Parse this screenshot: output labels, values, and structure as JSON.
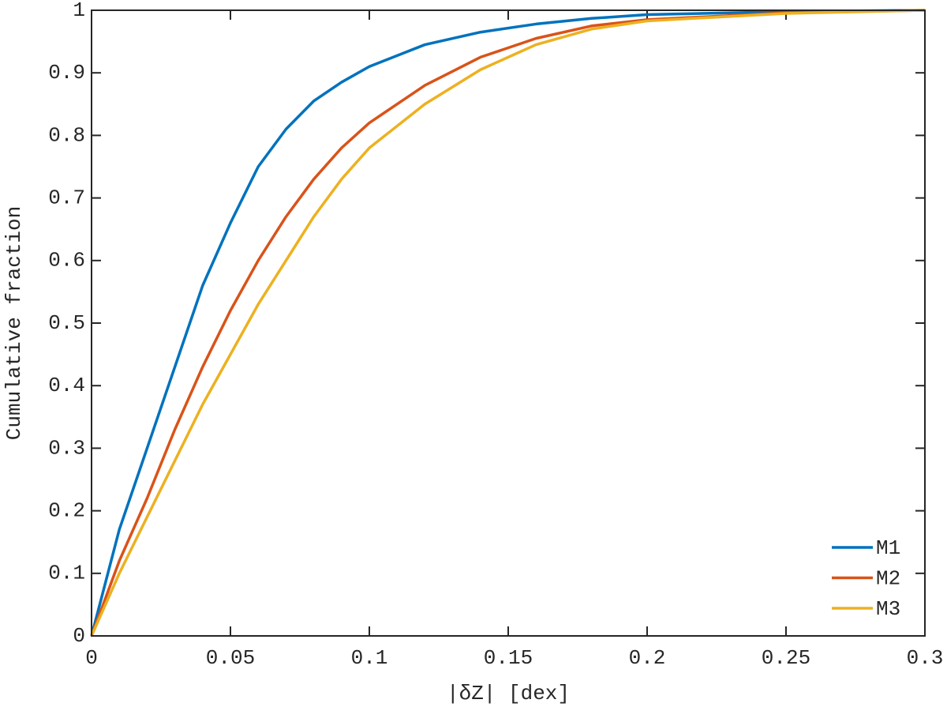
{
  "chart_data": {
    "type": "line",
    "x_label": "|δZ| [dex]",
    "y_label": "Cumulative fraction",
    "x": [
      0,
      0.01,
      0.02,
      0.03,
      0.04,
      0.05,
      0.06,
      0.07,
      0.08,
      0.09,
      0.1,
      0.12,
      0.14,
      0.16,
      0.18,
      0.2,
      0.25,
      0.3
    ],
    "series": [
      {
        "name": "M1",
        "color": "#0072bd",
        "values": [
          0,
          0.17,
          0.3,
          0.43,
          0.56,
          0.66,
          0.75,
          0.81,
          0.855,
          0.885,
          0.91,
          0.945,
          0.965,
          0.978,
          0.987,
          0.993,
          0.998,
          1
        ]
      },
      {
        "name": "M2",
        "color": "#d95319",
        "values": [
          0,
          0.12,
          0.22,
          0.33,
          0.43,
          0.52,
          0.6,
          0.67,
          0.73,
          0.78,
          0.82,
          0.88,
          0.925,
          0.955,
          0.975,
          0.985,
          0.996,
          1
        ]
      },
      {
        "name": "M3",
        "color": "#edb120",
        "values": [
          0,
          0.1,
          0.19,
          0.28,
          0.37,
          0.45,
          0.53,
          0.6,
          0.67,
          0.73,
          0.78,
          0.85,
          0.905,
          0.945,
          0.97,
          0.983,
          0.995,
          1
        ]
      }
    ],
    "xlim": [
      0,
      0.3
    ],
    "xticks": [
      0,
      0.05,
      0.1,
      0.15,
      0.2,
      0.25,
      0.3
    ],
    "ylim": [
      0,
      1
    ],
    "yticks": [
      0,
      0.1,
      0.2,
      0.3,
      0.4,
      0.5,
      0.6,
      0.7,
      0.8,
      0.9,
      1
    ],
    "legend": "lower-right"
  }
}
